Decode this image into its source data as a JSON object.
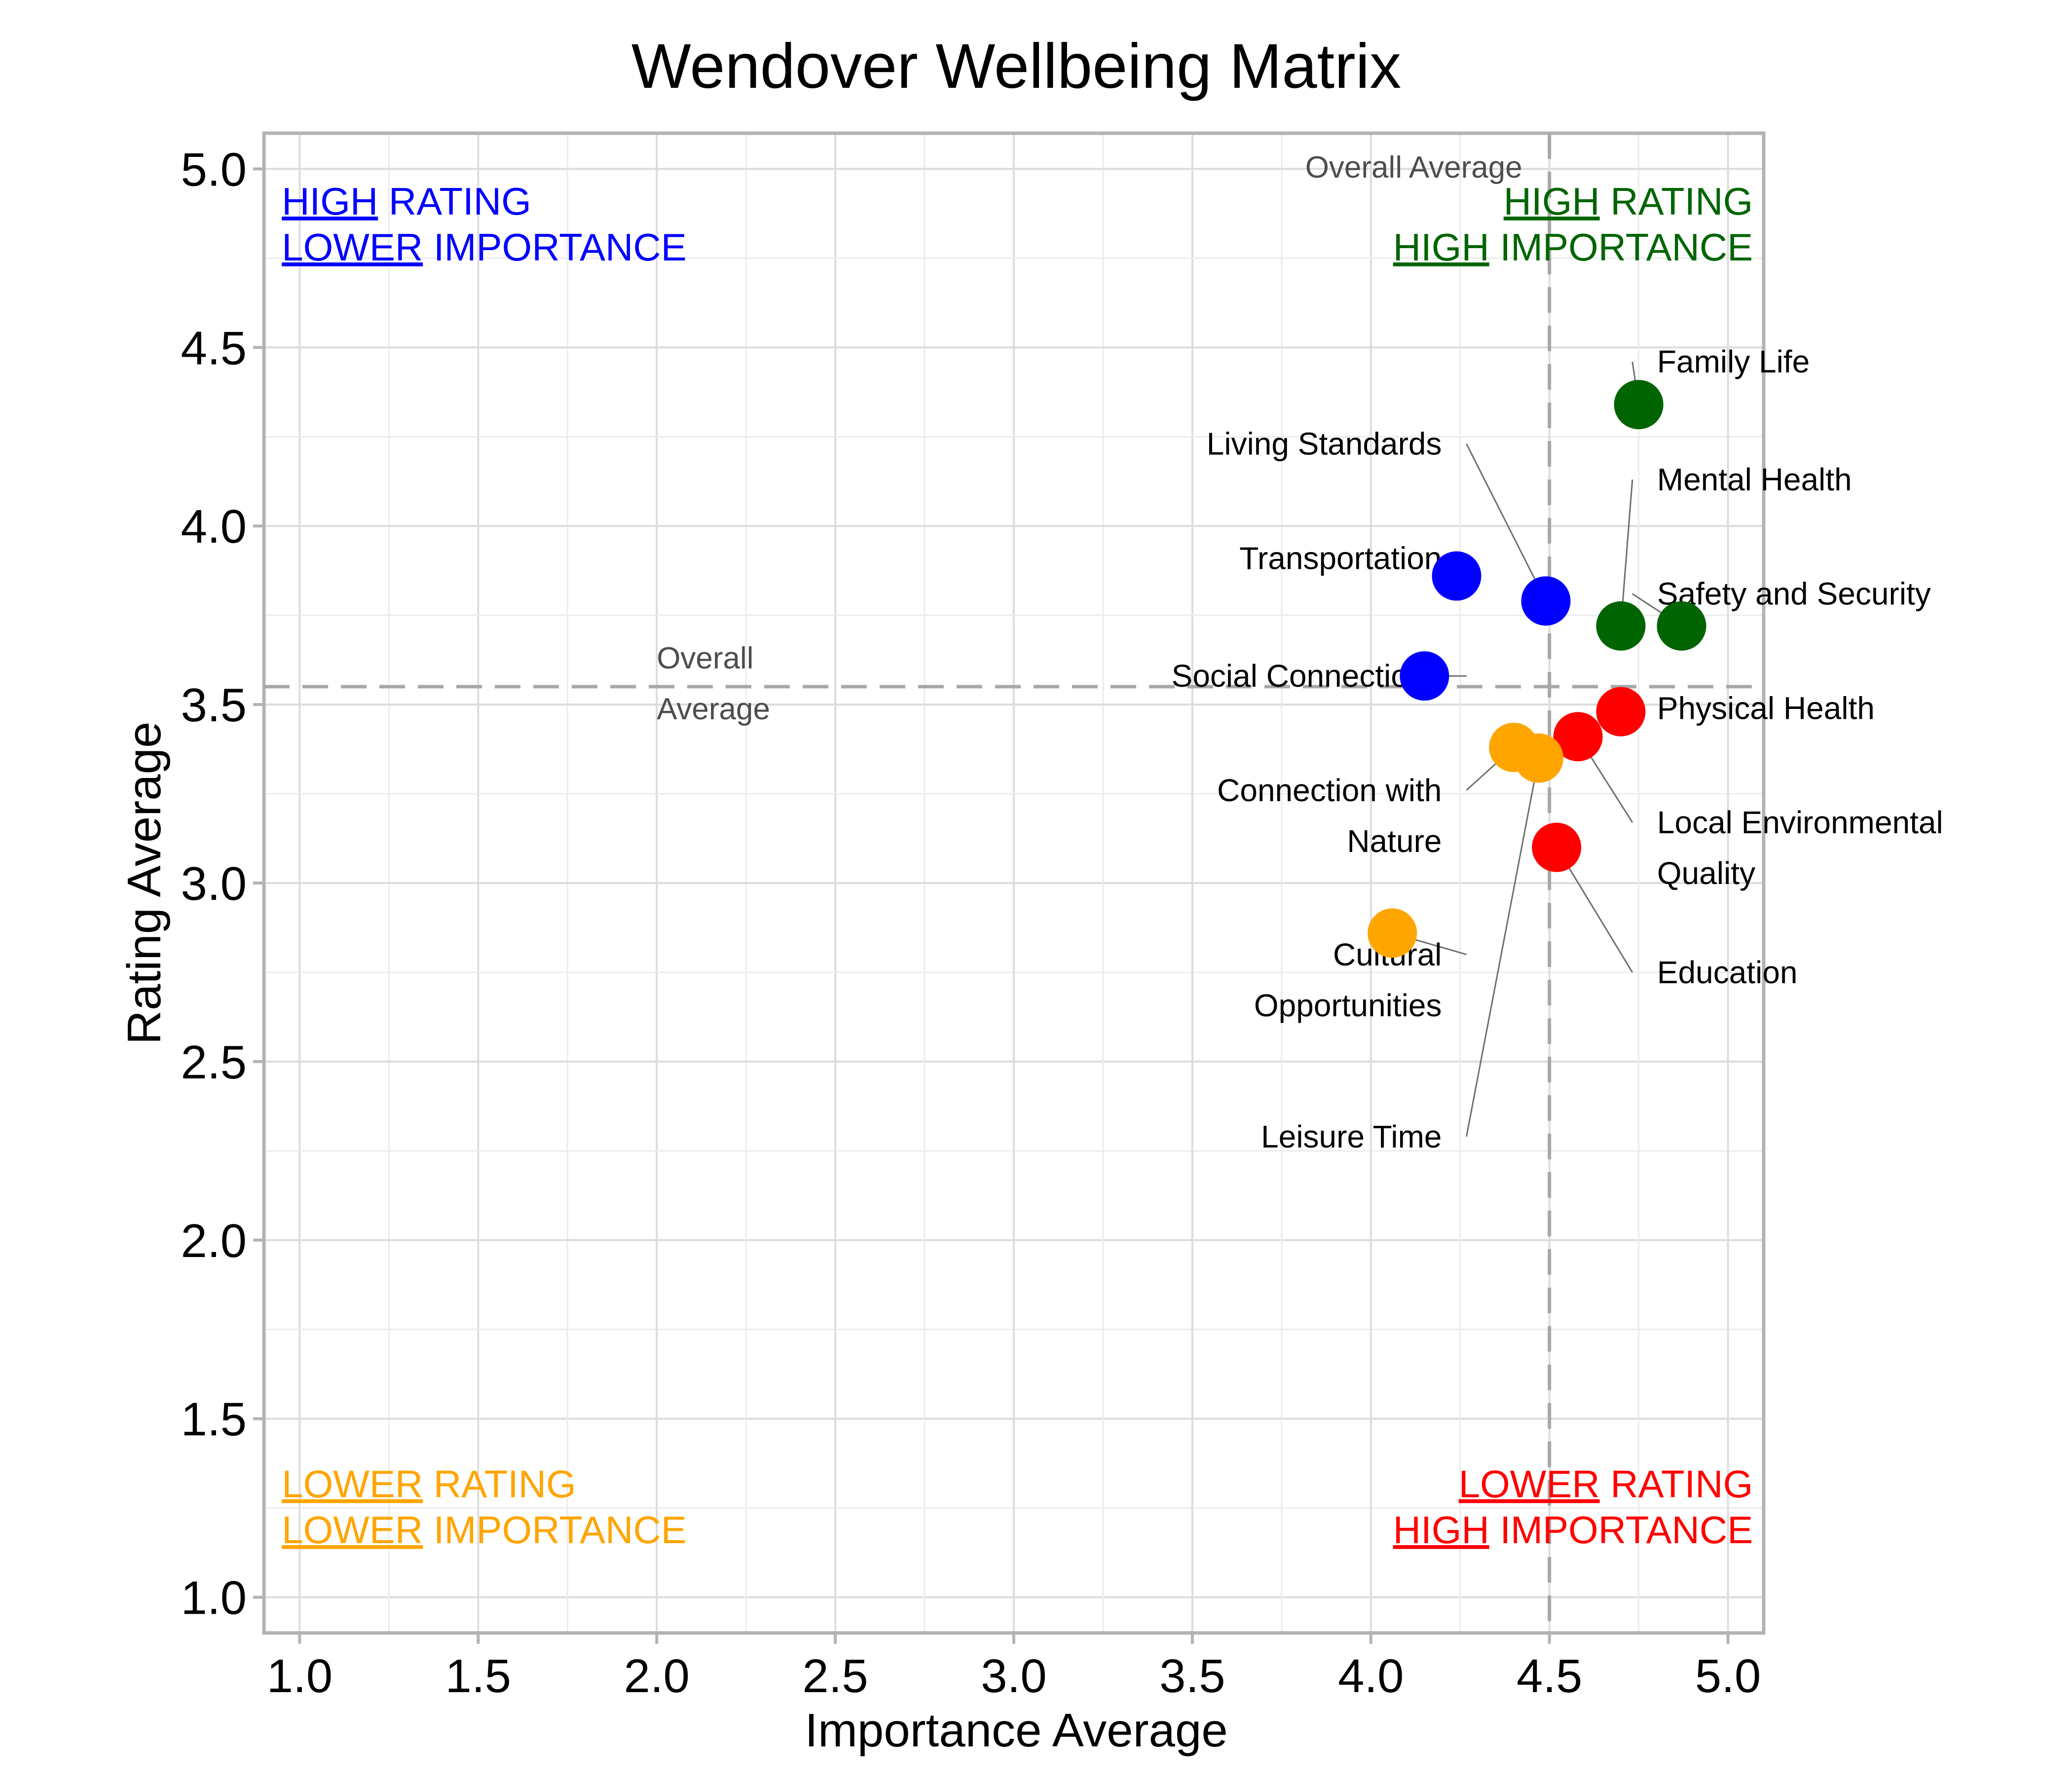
{
  "chart_data": {
    "type": "scatter",
    "title": "Wendover Wellbeing Matrix",
    "xlabel": "Importance Average",
    "ylabel": "Rating Average",
    "xlim": [
      0.9,
      5.1
    ],
    "ylim": [
      0.9,
      5.1
    ],
    "xticks": [
      "1.0",
      "1.5",
      "2.0",
      "2.5",
      "3.0",
      "3.5",
      "4.0",
      "4.5",
      "5.0"
    ],
    "yticks": [
      "1.0",
      "1.5",
      "2.0",
      "2.5",
      "3.0",
      "3.5",
      "4.0",
      "4.5",
      "5.0"
    ],
    "grid": true,
    "reference_lines": {
      "x_average": 4.5,
      "y_average": 3.55,
      "x_label": "Overall Average",
      "y_label_lines": [
        "Overall",
        "Average"
      ]
    },
    "quadrants": [
      {
        "id": "hr-li",
        "line1_under": "HIGH",
        "line1_rest": " RATING",
        "line2_under": "LOWER",
        "line2_rest": " IMPORTANCE",
        "color": "#0000ff",
        "position": "top-left"
      },
      {
        "id": "hr-hi",
        "line1_under": "HIGH",
        "line1_rest": " RATING",
        "line2_under": "HIGH",
        "line2_rest": " IMPORTANCE",
        "color": "#006400",
        "position": "top-right"
      },
      {
        "id": "lr-li",
        "line1_under": "LOWER",
        "line1_rest": " RATING",
        "line2_under": "LOWER",
        "line2_rest": " IMPORTANCE",
        "color": "#ffa500",
        "position": "bottom-left"
      },
      {
        "id": "lr-hi",
        "line1_under": "LOWER",
        "line1_rest": " RATING",
        "line2_under": "HIGH",
        "line2_rest": " IMPORTANCE",
        "color": "#ff0000",
        "position": "bottom-right"
      }
    ],
    "points": [
      {
        "label_lines": [
          "Family Life"
        ],
        "x": 4.75,
        "y": 4.34,
        "color": "#006400",
        "label_x": 4.76,
        "label_y": 4.46,
        "anchor": "start"
      },
      {
        "label_lines": [
          "Mental Health"
        ],
        "x": 4.7,
        "y": 3.72,
        "color": "#006400",
        "label_x": 4.76,
        "label_y": 4.13,
        "anchor": "start"
      },
      {
        "label_lines": [
          "Safety and Security"
        ],
        "x": 4.87,
        "y": 3.72,
        "color": "#006400",
        "label_x": 4.76,
        "label_y": 3.81,
        "anchor": "start"
      },
      {
        "label_lines": [
          "Living Standards"
        ],
        "x": 4.49,
        "y": 3.79,
        "color": "#0000ff",
        "label_x": 4.24,
        "label_y": 4.23,
        "anchor": "end"
      },
      {
        "label_lines": [
          "Transportation"
        ],
        "x": 4.24,
        "y": 3.86,
        "color": "#0000ff",
        "label_x": 4.24,
        "label_y": 3.91,
        "anchor": "end"
      },
      {
        "label_lines": [
          "Social Connections"
        ],
        "x": 4.15,
        "y": 3.58,
        "color": "#0000ff",
        "label_x": 4.24,
        "label_y": 3.58,
        "anchor": "end"
      },
      {
        "label_lines": [
          "Physical Health"
        ],
        "x": 4.7,
        "y": 3.48,
        "color": "#ff0000",
        "label_x": 4.76,
        "label_y": 3.49,
        "anchor": "start"
      },
      {
        "label_lines": [
          "Local Environmental",
          "Quality"
        ],
        "x": 4.58,
        "y": 3.41,
        "color": "#ff0000",
        "label_x": 4.76,
        "label_y": 3.17,
        "anchor": "start"
      },
      {
        "label_lines": [
          "Education"
        ],
        "x": 4.52,
        "y": 3.1,
        "color": "#ff0000",
        "label_x": 4.76,
        "label_y": 2.75,
        "anchor": "start"
      },
      {
        "label_lines": [
          "Connection with",
          "Nature"
        ],
        "x": 4.4,
        "y": 3.38,
        "color": "#ffa500",
        "label_x": 4.24,
        "label_y": 3.26,
        "anchor": "end"
      },
      {
        "label_lines": [
          "Leisure Time"
        ],
        "x": 4.47,
        "y": 3.35,
        "color": "#ffa500",
        "label_x": 4.24,
        "label_y": 2.29,
        "anchor": "end"
      },
      {
        "label_lines": [
          "Cultural",
          "Opportunities"
        ],
        "x": 4.06,
        "y": 2.86,
        "color": "#ffa500",
        "label_x": 4.24,
        "label_y": 2.8,
        "anchor": "end"
      }
    ]
  }
}
